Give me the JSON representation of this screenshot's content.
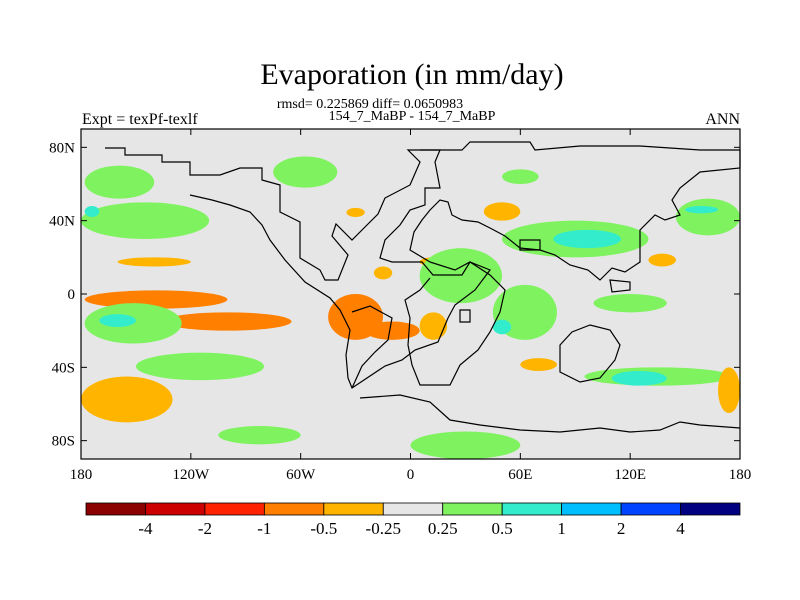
{
  "chart_data": {
    "type": "heatmap",
    "title": "Evaporation (in mm/day)",
    "stats_line": "rmsd= 0.225869 diff= 0.0650983",
    "case_line": "154_7_MaBP - 154_7_MaBP",
    "left_label": "Expt = texPf-texlf",
    "right_label": "ANN",
    "xlim": [
      -180,
      180
    ],
    "ylim": [
      -90,
      90
    ],
    "x_ticks": [
      {
        "value": -180,
        "label": "180"
      },
      {
        "value": -120,
        "label": "120W"
      },
      {
        "value": -60,
        "label": "60W"
      },
      {
        "value": 0,
        "label": "0"
      },
      {
        "value": 60,
        "label": "60E"
      },
      {
        "value": 120,
        "label": "120E"
      },
      {
        "value": 180,
        "label": "180"
      }
    ],
    "y_ticks": [
      {
        "value": 80,
        "label": "80N"
      },
      {
        "value": 40,
        "label": "40N"
      },
      {
        "value": 0,
        "label": "0"
      },
      {
        "value": -40,
        "label": "40S"
      },
      {
        "value": -80,
        "label": "80S"
      }
    ],
    "colorbar": {
      "colors": [
        "#8b0000",
        "#cd0000",
        "#ff2200",
        "#ff7f00",
        "#ffb400",
        "#e6e6e6",
        "#7ff35f",
        "#33eccc",
        "#00bfff",
        "#0044ff",
        "#000080"
      ],
      "labels": [
        "-4",
        "-2",
        "-1",
        "-0.5",
        "-0.25",
        "0.25",
        "0.5",
        "1",
        "2",
        "4"
      ]
    },
    "regions": [
      {
        "level": "0.25 to 0.5",
        "lon": [
          -178,
          -140
        ],
        "lat": [
          52,
          70
        ]
      },
      {
        "level": "0.25 to 0.5",
        "lon": [
          -75,
          -40
        ],
        "lat": [
          58,
          75
        ]
      },
      {
        "level": "0.25 to 0.5",
        "lon": [
          -180,
          -110
        ],
        "lat": [
          30,
          50
        ]
      },
      {
        "level": "0.5 to 1",
        "lon": [
          -178,
          -170
        ],
        "lat": [
          42,
          48
        ]
      },
      {
        "level": "-0.25 to -0.5",
        "lon": [
          -160,
          -120
        ],
        "lat": [
          15,
          20
        ]
      },
      {
        "level": "-0.5 to -1",
        "lon": [
          -178,
          -100
        ],
        "lat": [
          -8,
          2
        ]
      },
      {
        "level": "-0.5 to -1",
        "lon": [
          -135,
          -65
        ],
        "lat": [
          -20,
          -10
        ]
      },
      {
        "level": "0.25 to 0.5",
        "lon": [
          -178,
          -125
        ],
        "lat": [
          -27,
          -5
        ]
      },
      {
        "level": "0.5 to 1",
        "lon": [
          -170,
          -150
        ],
        "lat": [
          -18,
          -11
        ]
      },
      {
        "level": "0.25 to 0.5",
        "lon": [
          -150,
          -80
        ],
        "lat": [
          -47,
          -32
        ]
      },
      {
        "level": "-0.25 to -0.5",
        "lon": [
          -180,
          -130
        ],
        "lat": [
          -70,
          -45
        ]
      },
      {
        "level": "0.25 to 0.5",
        "lon": [
          -105,
          -60
        ],
        "lat": [
          -82,
          -72
        ]
      },
      {
        "level": "-0.5 to -1",
        "lon": [
          -45,
          -15
        ],
        "lat": [
          -25,
          0
        ]
      },
      {
        "level": "-0.5 to -1",
        "lon": [
          -25,
          5
        ],
        "lat": [
          -25,
          -15
        ]
      },
      {
        "level": "-0.25 to -0.5",
        "lon": [
          5,
          20
        ],
        "lat": [
          -25,
          -10
        ]
      },
      {
        "level": "-0.25 to -0.5",
        "lon": [
          -20,
          -10
        ],
        "lat": [
          8,
          15
        ]
      },
      {
        "level": "-0.25 to -0.5",
        "lon": [
          5,
          20
        ],
        "lat": [
          15,
          20
        ]
      },
      {
        "level": "-0.25 to -0.5",
        "lon": [
          -35,
          -25
        ],
        "lat": [
          42,
          47
        ]
      },
      {
        "level": "0.25 to 0.5",
        "lon": [
          5,
          50
        ],
        "lat": [
          -5,
          25
        ]
      },
      {
        "level": "-0.25 to -0.5",
        "lon": [
          40,
          60
        ],
        "lat": [
          40,
          50
        ]
      },
      {
        "level": "0.25 to 0.5",
        "lon": [
          50,
          70
        ],
        "lat": [
          60,
          68
        ]
      },
      {
        "level": "0.25 to 0.5",
        "lon": [
          50,
          130
        ],
        "lat": [
          20,
          40
        ]
      },
      {
        "level": "0.5 to 1",
        "lon": [
          78,
          115
        ],
        "lat": [
          25,
          35
        ]
      },
      {
        "level": "0.25 to 0.5",
        "lon": [
          45,
          80
        ],
        "lat": [
          -25,
          5
        ]
      },
      {
        "level": "0.5 to 1",
        "lon": [
          45,
          55
        ],
        "lat": [
          -22,
          -14
        ]
      },
      {
        "level": "-0.25 to -0.5",
        "lon": [
          60,
          80
        ],
        "lat": [
          -42,
          -35
        ]
      },
      {
        "level": "0.25 to 0.5",
        "lon": [
          100,
          140
        ],
        "lat": [
          -10,
          0
        ]
      },
      {
        "level": "0.25 to 0.5",
        "lon": [
          95,
          175
        ],
        "lat": [
          -50,
          -40
        ]
      },
      {
        "level": "0.5 to 1",
        "lon": [
          110,
          140
        ],
        "lat": [
          -50,
          -42
        ]
      },
      {
        "level": "-0.25 to -0.5",
        "lon": [
          168,
          180
        ],
        "lat": [
          -65,
          -40
        ]
      },
      {
        "level": "0.25 to 0.5",
        "lon": [
          145,
          180
        ],
        "lat": [
          32,
          52
        ]
      },
      {
        "level": "0.5 to 1",
        "lon": [
          150,
          168
        ],
        "lat": [
          44,
          48
        ]
      },
      {
        "level": "-0.25 to -0.5",
        "lon": [
          130,
          145
        ],
        "lat": [
          15,
          22
        ]
      },
      {
        "level": "0.25 to 0.5",
        "lon": [
          0,
          60
        ],
        "lat": [
          -90,
          -75
        ]
      }
    ]
  }
}
